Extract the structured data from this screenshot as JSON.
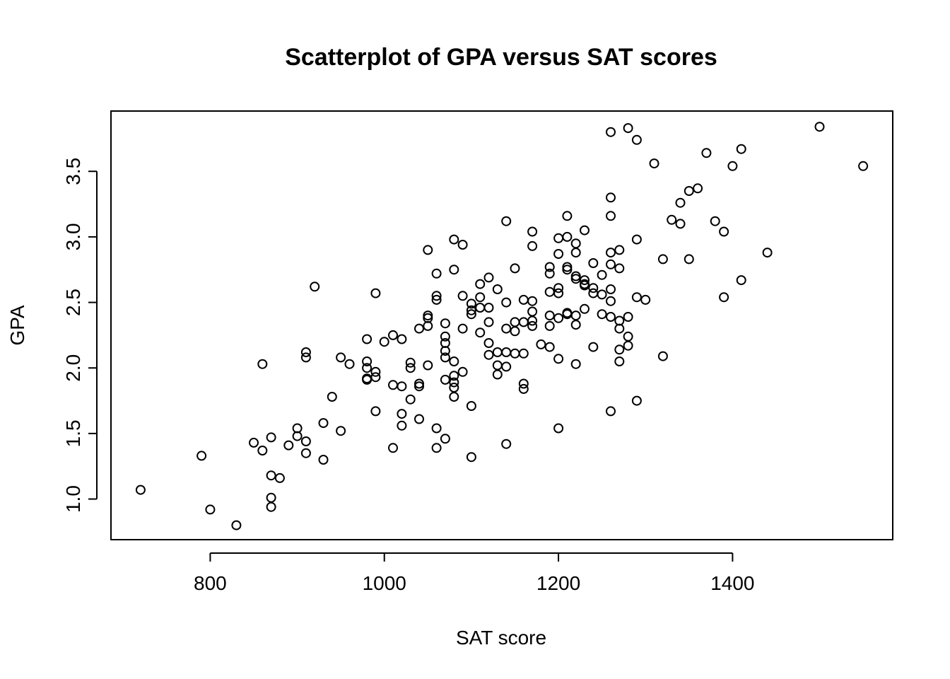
{
  "chart_data": {
    "type": "scatter",
    "title": "Scatterplot of GPA versus SAT scores",
    "xlabel": "SAT score",
    "ylabel": "GPA",
    "xlim": [
      686,
      1584
    ],
    "ylim": [
      0.69,
      3.96
    ],
    "x_ticks": [
      800,
      1000,
      1200,
      1400
    ],
    "y_ticks": [
      1.0,
      1.5,
      2.0,
      2.5,
      3.0,
      3.5
    ],
    "x_tick_labels": [
      "800",
      "1000",
      "1200",
      "1400"
    ],
    "y_tick_labels": [
      "1.0",
      "1.5",
      "2.0",
      "2.5",
      "3.0",
      "3.5"
    ],
    "grid": false,
    "legend": "none",
    "marker": "open-circle",
    "points": [
      [
        720,
        1.07
      ],
      [
        790,
        1.33
      ],
      [
        800,
        0.92
      ],
      [
        830,
        0.8
      ],
      [
        850,
        1.43
      ],
      [
        860,
        1.37
      ],
      [
        860,
        2.03
      ],
      [
        870,
        1.47
      ],
      [
        870,
        1.18
      ],
      [
        870,
        1.01
      ],
      [
        870,
        0.94
      ],
      [
        880,
        1.16
      ],
      [
        890,
        1.41
      ],
      [
        900,
        1.54
      ],
      [
        900,
        1.48
      ],
      [
        910,
        1.44
      ],
      [
        910,
        1.35
      ],
      [
        910,
        2.12
      ],
      [
        910,
        2.08
      ],
      [
        920,
        2.62
      ],
      [
        930,
        1.58
      ],
      [
        930,
        1.3
      ],
      [
        940,
        1.78
      ],
      [
        950,
        1.52
      ],
      [
        950,
        2.08
      ],
      [
        960,
        2.03
      ],
      [
        980,
        2.22
      ],
      [
        980,
        2.05
      ],
      [
        980,
        2.0
      ],
      [
        980,
        1.92
      ],
      [
        980,
        1.91
      ],
      [
        990,
        1.97
      ],
      [
        990,
        1.93
      ],
      [
        990,
        1.67
      ],
      [
        990,
        2.57
      ],
      [
        1000,
        2.2
      ],
      [
        1010,
        2.25
      ],
      [
        1010,
        1.87
      ],
      [
        1010,
        1.39
      ],
      [
        1020,
        2.22
      ],
      [
        1020,
        1.86
      ],
      [
        1020,
        1.65
      ],
      [
        1020,
        1.56
      ],
      [
        1030,
        2.04
      ],
      [
        1030,
        2.0
      ],
      [
        1030,
        1.76
      ],
      [
        1040,
        1.88
      ],
      [
        1040,
        1.86
      ],
      [
        1040,
        1.61
      ],
      [
        1040,
        2.3
      ],
      [
        1050,
        2.9
      ],
      [
        1050,
        2.4
      ],
      [
        1050,
        2.38
      ],
      [
        1050,
        2.32
      ],
      [
        1050,
        2.02
      ],
      [
        1060,
        2.72
      ],
      [
        1060,
        2.55
      ],
      [
        1060,
        2.52
      ],
      [
        1060,
        1.54
      ],
      [
        1060,
        1.39
      ],
      [
        1070,
        2.34
      ],
      [
        1070,
        2.24
      ],
      [
        1070,
        2.19
      ],
      [
        1070,
        2.13
      ],
      [
        1070,
        2.08
      ],
      [
        1070,
        1.91
      ],
      [
        1070,
        1.46
      ],
      [
        1080,
        2.98
      ],
      [
        1080,
        2.75
      ],
      [
        1080,
        2.05
      ],
      [
        1080,
        1.94
      ],
      [
        1080,
        1.89
      ],
      [
        1080,
        1.85
      ],
      [
        1080,
        1.78
      ],
      [
        1090,
        2.94
      ],
      [
        1090,
        2.55
      ],
      [
        1090,
        2.3
      ],
      [
        1090,
        1.97
      ],
      [
        1100,
        2.49
      ],
      [
        1100,
        2.44
      ],
      [
        1100,
        2.41
      ],
      [
        1100,
        1.71
      ],
      [
        1100,
        1.32
      ],
      [
        1110,
        2.64
      ],
      [
        1110,
        2.54
      ],
      [
        1110,
        2.46
      ],
      [
        1110,
        2.27
      ],
      [
        1120,
        2.69
      ],
      [
        1120,
        2.46
      ],
      [
        1120,
        2.35
      ],
      [
        1120,
        2.19
      ],
      [
        1120,
        2.1
      ],
      [
        1130,
        2.6
      ],
      [
        1130,
        2.12
      ],
      [
        1130,
        2.02
      ],
      [
        1130,
        1.95
      ],
      [
        1140,
        3.12
      ],
      [
        1140,
        2.5
      ],
      [
        1140,
        2.3
      ],
      [
        1140,
        2.12
      ],
      [
        1140,
        2.01
      ],
      [
        1140,
        1.42
      ],
      [
        1150,
        2.76
      ],
      [
        1150,
        2.35
      ],
      [
        1150,
        2.28
      ],
      [
        1150,
        2.11
      ],
      [
        1160,
        2.52
      ],
      [
        1160,
        2.35
      ],
      [
        1160,
        2.11
      ],
      [
        1160,
        1.88
      ],
      [
        1160,
        1.84
      ],
      [
        1170,
        3.04
      ],
      [
        1170,
        2.93
      ],
      [
        1170,
        2.51
      ],
      [
        1170,
        2.43
      ],
      [
        1170,
        2.36
      ],
      [
        1170,
        2.32
      ],
      [
        1180,
        2.18
      ],
      [
        1190,
        2.77
      ],
      [
        1190,
        2.72
      ],
      [
        1190,
        2.58
      ],
      [
        1190,
        2.4
      ],
      [
        1190,
        2.32
      ],
      [
        1190,
        2.16
      ],
      [
        1200,
        2.99
      ],
      [
        1200,
        2.87
      ],
      [
        1200,
        2.61
      ],
      [
        1200,
        2.57
      ],
      [
        1200,
        2.38
      ],
      [
        1200,
        2.07
      ],
      [
        1200,
        1.54
      ],
      [
        1210,
        3.16
      ],
      [
        1210,
        3.0
      ],
      [
        1210,
        2.77
      ],
      [
        1210,
        2.75
      ],
      [
        1210,
        2.42
      ],
      [
        1210,
        2.41
      ],
      [
        1220,
        2.95
      ],
      [
        1220,
        2.88
      ],
      [
        1220,
        2.7
      ],
      [
        1220,
        2.68
      ],
      [
        1220,
        2.4
      ],
      [
        1220,
        2.33
      ],
      [
        1220,
        2.03
      ],
      [
        1230,
        3.05
      ],
      [
        1230,
        2.67
      ],
      [
        1230,
        2.64
      ],
      [
        1230,
        2.63
      ],
      [
        1230,
        2.45
      ],
      [
        1240,
        2.8
      ],
      [
        1240,
        2.61
      ],
      [
        1240,
        2.57
      ],
      [
        1240,
        2.16
      ],
      [
        1250,
        2.71
      ],
      [
        1250,
        2.56
      ],
      [
        1250,
        2.41
      ],
      [
        1260,
        3.8
      ],
      [
        1260,
        3.3
      ],
      [
        1260,
        3.16
      ],
      [
        1260,
        2.88
      ],
      [
        1260,
        2.79
      ],
      [
        1260,
        2.6
      ],
      [
        1260,
        2.51
      ],
      [
        1260,
        2.39
      ],
      [
        1260,
        1.67
      ],
      [
        1270,
        2.9
      ],
      [
        1270,
        2.76
      ],
      [
        1270,
        2.36
      ],
      [
        1270,
        2.3
      ],
      [
        1270,
        2.14
      ],
      [
        1270,
        2.05
      ],
      [
        1280,
        3.83
      ],
      [
        1280,
        2.39
      ],
      [
        1280,
        2.24
      ],
      [
        1280,
        2.17
      ],
      [
        1290,
        3.74
      ],
      [
        1290,
        2.98
      ],
      [
        1290,
        2.54
      ],
      [
        1290,
        1.75
      ],
      [
        1300,
        2.52
      ],
      [
        1310,
        3.56
      ],
      [
        1320,
        2.83
      ],
      [
        1320,
        2.09
      ],
      [
        1330,
        3.13
      ],
      [
        1340,
        3.26
      ],
      [
        1340,
        3.1
      ],
      [
        1350,
        3.35
      ],
      [
        1350,
        2.83
      ],
      [
        1360,
        3.37
      ],
      [
        1370,
        3.64
      ],
      [
        1380,
        3.12
      ],
      [
        1390,
        3.04
      ],
      [
        1390,
        2.54
      ],
      [
        1400,
        3.54
      ],
      [
        1410,
        3.67
      ],
      [
        1410,
        2.67
      ],
      [
        1440,
        2.88
      ],
      [
        1500,
        3.84
      ],
      [
        1550,
        3.54
      ]
    ]
  }
}
